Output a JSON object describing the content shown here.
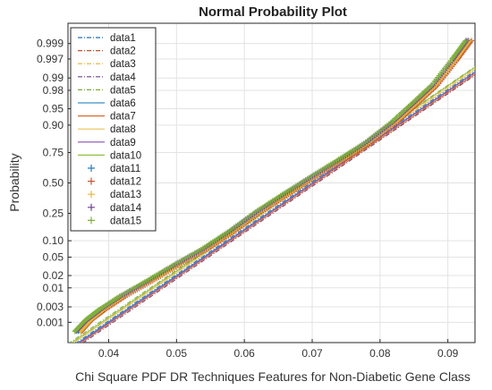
{
  "chart_data": {
    "type": "scatter",
    "title": "Normal Probability Plot",
    "xlabel": "Chi Square PDF DR Techniques Features for Non-Diabetic Gene Class",
    "ylabel": "Probability",
    "xlim": [
      0.034,
      0.094
    ],
    "ylim_probability": [
      0.0002,
      0.9998
    ],
    "y_scale": "normal-probability",
    "grid": true,
    "legend_position": "top-left",
    "x_ticks": [
      0.04,
      0.05,
      0.06,
      0.07,
      0.08,
      0.09
    ],
    "x_tick_labels": [
      "0.04",
      "0.05",
      "0.06",
      "0.07",
      "0.08",
      "0.09"
    ],
    "y_ticks": [
      0.001,
      0.003,
      0.01,
      0.02,
      0.05,
      0.1,
      0.25,
      0.5,
      0.75,
      0.9,
      0.95,
      0.98,
      0.99,
      0.997,
      0.999
    ],
    "y_tick_labels": [
      "0.001",
      "0.003",
      "0.01",
      "0.02",
      "0.05",
      "0.10",
      "0.25",
      "0.50",
      "0.75",
      "0.90",
      "0.95",
      "0.98",
      "0.99",
      "0.997",
      "0.999"
    ],
    "reference_lines": [
      {
        "name": "data1",
        "color": "#1f6fb5",
        "style": "dashdot",
        "x": [
          0.034,
          0.094
        ],
        "p": [
          0.00012,
          0.9935
        ]
      },
      {
        "name": "data2",
        "color": "#c0522a",
        "style": "dashdot",
        "x": [
          0.034,
          0.094
        ],
        "p": [
          0.0001,
          0.9925
        ]
      },
      {
        "name": "data3",
        "color": "#e2b23a",
        "style": "dashdot",
        "x": [
          0.034,
          0.094
        ],
        "p": [
          0.00015,
          0.9945
        ]
      },
      {
        "name": "data4",
        "color": "#6b3f8e",
        "style": "dashdot",
        "x": [
          0.034,
          0.094
        ],
        "p": [
          8e-05,
          0.9915
        ]
      },
      {
        "name": "data5",
        "color": "#7cab3c",
        "style": "dashdot",
        "x": [
          0.034,
          0.094
        ],
        "p": [
          0.00018,
          0.995
        ]
      },
      {
        "name": "data6",
        "color": "#3a8fc7",
        "style": "solid",
        "x": [
          0.034,
          0.094
        ],
        "p": [
          0.00011,
          0.993
        ]
      },
      {
        "name": "data7",
        "color": "#d96a2b",
        "style": "solid",
        "x": [
          0.034,
          0.094
        ],
        "p": [
          9e-05,
          0.992
        ]
      },
      {
        "name": "data8",
        "color": "#eec15a",
        "style": "solid",
        "x": [
          0.034,
          0.094
        ],
        "p": [
          0.00014,
          0.994
        ]
      },
      {
        "name": "data9",
        "color": "#8a4fb0",
        "style": "solid",
        "x": [
          0.034,
          0.094
        ],
        "p": [
          0.0001,
          0.9928
        ]
      },
      {
        "name": "data10",
        "color": "#8fbf3e",
        "style": "solid",
        "x": [
          0.034,
          0.094
        ],
        "p": [
          0.00016,
          0.9948
        ]
      }
    ],
    "series": [
      {
        "name": "data11",
        "color": "#2b7bc0",
        "x": [
          0.0355,
          0.037,
          0.039,
          0.042,
          0.046,
          0.05,
          0.054,
          0.058,
          0.062,
          0.066,
          0.07,
          0.074,
          0.078,
          0.082,
          0.085,
          0.088,
          0.091,
          0.093
        ],
        "p": [
          0.0005,
          0.0012,
          0.0025,
          0.006,
          0.015,
          0.035,
          0.07,
          0.14,
          0.26,
          0.4,
          0.55,
          0.69,
          0.81,
          0.91,
          0.96,
          0.985,
          0.997,
          0.9992
        ]
      },
      {
        "name": "data12",
        "color": "#c8562c",
        "x": [
          0.036,
          0.0375,
          0.0395,
          0.0425,
          0.0465,
          0.0505,
          0.0545,
          0.0585,
          0.0625,
          0.0665,
          0.0705,
          0.0745,
          0.0785,
          0.0825,
          0.0855,
          0.0885,
          0.0915,
          0.0935
        ],
        "p": [
          0.0005,
          0.0012,
          0.0025,
          0.006,
          0.015,
          0.035,
          0.07,
          0.14,
          0.26,
          0.4,
          0.55,
          0.69,
          0.81,
          0.91,
          0.96,
          0.985,
          0.997,
          0.9992
        ]
      },
      {
        "name": "data13",
        "color": "#e5b53c",
        "x": [
          0.0358,
          0.0373,
          0.0392,
          0.0422,
          0.0462,
          0.0502,
          0.0542,
          0.0582,
          0.0622,
          0.0662,
          0.0702,
          0.0742,
          0.0782,
          0.0822,
          0.0852,
          0.0882,
          0.0912,
          0.0932
        ],
        "p": [
          0.0005,
          0.0012,
          0.0025,
          0.006,
          0.015,
          0.035,
          0.07,
          0.14,
          0.26,
          0.4,
          0.55,
          0.69,
          0.81,
          0.91,
          0.96,
          0.985,
          0.997,
          0.9992
        ]
      },
      {
        "name": "data14",
        "color": "#6e3f92",
        "x": [
          0.0352,
          0.0368,
          0.0388,
          0.0418,
          0.0458,
          0.0498,
          0.0538,
          0.0578,
          0.0618,
          0.0658,
          0.0698,
          0.0738,
          0.0778,
          0.0818,
          0.0848,
          0.0878,
          0.0908,
          0.0928
        ],
        "p": [
          0.0005,
          0.0012,
          0.0025,
          0.006,
          0.015,
          0.035,
          0.07,
          0.14,
          0.26,
          0.4,
          0.55,
          0.69,
          0.81,
          0.91,
          0.96,
          0.985,
          0.997,
          0.9992
        ]
      },
      {
        "name": "data15",
        "color": "#7fb03d",
        "x": [
          0.035,
          0.0366,
          0.0386,
          0.0416,
          0.0456,
          0.0496,
          0.0536,
          0.0576,
          0.0616,
          0.0656,
          0.0696,
          0.0736,
          0.0776,
          0.0816,
          0.0846,
          0.0876,
          0.0906,
          0.0926
        ],
        "p": [
          0.0005,
          0.0012,
          0.0025,
          0.006,
          0.015,
          0.035,
          0.07,
          0.14,
          0.26,
          0.4,
          0.55,
          0.69,
          0.81,
          0.91,
          0.96,
          0.985,
          0.997,
          0.9992
        ]
      }
    ],
    "legend": [
      {
        "label": "data1",
        "kind": "line",
        "color": "#1f6fb5",
        "style": "dashdot"
      },
      {
        "label": "data2",
        "kind": "line",
        "color": "#c0522a",
        "style": "dashdot"
      },
      {
        "label": "data3",
        "kind": "line",
        "color": "#e2b23a",
        "style": "dashdot"
      },
      {
        "label": "data4",
        "kind": "line",
        "color": "#6b3f8e",
        "style": "dashdot"
      },
      {
        "label": "data5",
        "kind": "line",
        "color": "#7cab3c",
        "style": "dashdot"
      },
      {
        "label": "data6",
        "kind": "line",
        "color": "#3a8fc7",
        "style": "solid"
      },
      {
        "label": "data7",
        "kind": "line",
        "color": "#d96a2b",
        "style": "solid"
      },
      {
        "label": "data8",
        "kind": "line",
        "color": "#eec15a",
        "style": "solid"
      },
      {
        "label": "data9",
        "kind": "line",
        "color": "#8a4fb0",
        "style": "solid"
      },
      {
        "label": "data10",
        "kind": "line",
        "color": "#8fbf3e",
        "style": "solid"
      },
      {
        "label": "data11",
        "kind": "marker",
        "color": "#2b7bc0"
      },
      {
        "label": "data12",
        "kind": "marker",
        "color": "#c8562c"
      },
      {
        "label": "data13",
        "kind": "marker",
        "color": "#e5b53c"
      },
      {
        "label": "data14",
        "kind": "marker",
        "color": "#6e3f92"
      },
      {
        "label": "data15",
        "kind": "marker",
        "color": "#7fb03d"
      }
    ]
  }
}
